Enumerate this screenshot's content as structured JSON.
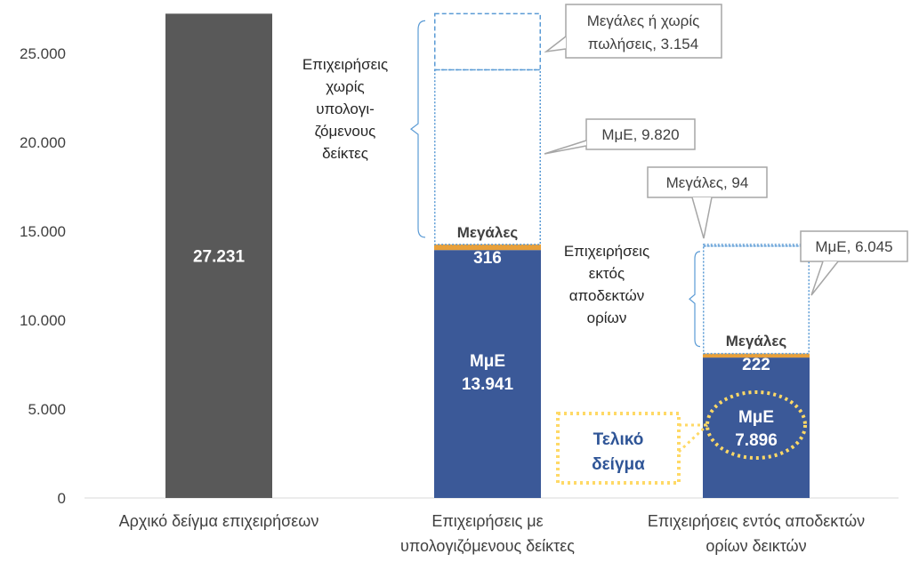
{
  "chart_data": {
    "type": "bar",
    "stacked": true,
    "ylim": [
      0,
      27500
    ],
    "yticks": [
      "0",
      "5.000",
      "10.000",
      "15.000",
      "20.000",
      "25.000"
    ],
    "ytick_values": [
      0,
      5000,
      10000,
      15000,
      20000,
      25000
    ],
    "grid": false,
    "categories": [
      {
        "lines": [
          "Αρχικό δείγμα επιχειρήσεων"
        ]
      },
      {
        "lines": [
          "Επιχειρήσεις με",
          "υπολογιζόμενους δείκτες"
        ]
      },
      {
        "lines": [
          "Επιχειρήσεις εντός αποδεκτών",
          "ορίων δεικτών"
        ]
      }
    ],
    "bars": [
      {
        "segments": [
          {
            "value": 27231,
            "label": "27.231",
            "color": "#595959",
            "style": "solid"
          }
        ]
      },
      {
        "segments": [
          {
            "value": 13941,
            "label_lines": [
              "ΜμΕ",
              "13.941"
            ],
            "color": "#3b5998",
            "style": "solid"
          },
          {
            "value": 316,
            "label": "316",
            "color": "#e8a03a",
            "style": "solid"
          },
          {
            "value": 9820,
            "callout": "ΜμΕ, 9.820",
            "color": "#5b9bd5",
            "style": "dotted"
          },
          {
            "value": 3154,
            "callout_lines": [
              "Μεγάλες ή χωρίς",
              "πωλήσεις, 3.154"
            ],
            "color": "#5b9bd5",
            "style": "dashed"
          }
        ]
      },
      {
        "segments": [
          {
            "value": 7896,
            "label_lines": [
              "ΜμΕ",
              "7.896"
            ],
            "color": "#3b5998",
            "style": "solid"
          },
          {
            "value": 222,
            "label": "222",
            "color": "#e8a03a",
            "style": "solid"
          },
          {
            "value": 6045,
            "callout": "ΜμΕ, 6.045",
            "color": "#5b9bd5",
            "style": "dotted"
          },
          {
            "value": 94,
            "callout": "Μεγάλες, 94",
            "color": "#5b9bd5",
            "style": "dotted"
          }
        ]
      }
    ],
    "annotations": {
      "bar2_large_label": "Μεγάλες",
      "bar3_large_label": "Μεγάλες",
      "bar2_note_lines": [
        "Επιχειρήσεις",
        "χωρίς",
        "υπολογι-",
        "ζόμενους",
        "δείκτες"
      ],
      "bar3_note_lines": [
        "Επιχειρήσεις",
        "εκτός",
        "αποδεκτών",
        "ορίων"
      ],
      "final_sample_lines": [
        "Τελικό",
        "δείγμα"
      ]
    }
  },
  "colors": {
    "axis_text": "#404040",
    "callout_border": "#a6a6a6",
    "highlight": "#ffd966"
  }
}
